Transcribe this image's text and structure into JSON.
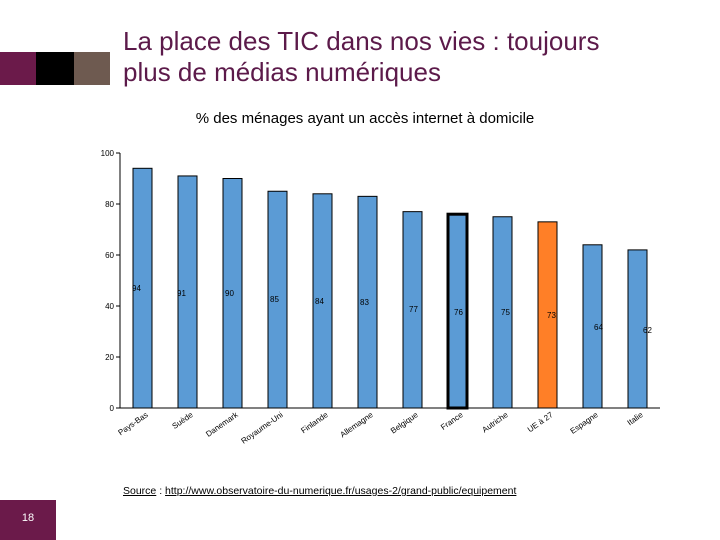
{
  "slide": {
    "title_line1": "La place des TIC dans nos vies : toujours",
    "title_line2": "plus de médias numériques",
    "source_label": "Source",
    "source_sep": " : ",
    "source_url": "http://www.observatoire-du-numerique.fr/usages-2/grand-public/equipement",
    "page_number": "18"
  },
  "colors": {
    "accent": "#6b1a4a",
    "bar": "#5b9bd5",
    "highlight": "#ff7f27"
  },
  "chart_data": {
    "type": "bar",
    "title": "% des ménages ayant un accès internet à domicile",
    "categories": [
      "Pays-Bas",
      "Suède",
      "Danemark",
      "Royaume-Uni",
      "Finlande",
      "Allemagne",
      "Belgique",
      "France",
      "Autriche",
      "UE à 27",
      "Espagne",
      "Italie"
    ],
    "values": [
      94,
      91,
      90,
      85,
      84,
      83,
      77,
      76,
      75,
      73,
      64,
      62
    ],
    "highlight": [
      "France",
      "UE à 27"
    ],
    "yticks": [
      0,
      20,
      40,
      60,
      80,
      100
    ],
    "ylim": [
      0,
      100
    ],
    "xlabel": "",
    "ylabel": ""
  }
}
